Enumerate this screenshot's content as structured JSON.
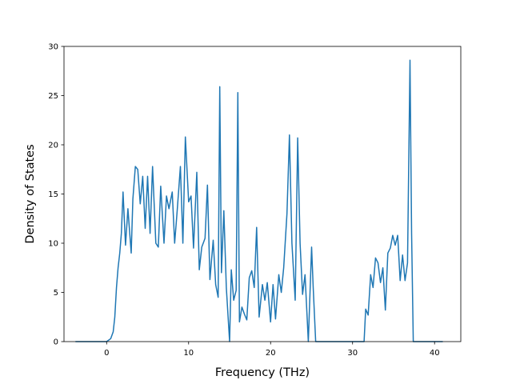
{
  "chart_data": {
    "type": "line",
    "title": "",
    "xlabel": "Frequency (THz)",
    "ylabel": "Density of States",
    "xlim": [
      -5.2,
      43.2
    ],
    "ylim": [
      0,
      30
    ],
    "xticks": [
      0,
      10,
      20,
      30,
      40
    ],
    "yticks": [
      0,
      5,
      10,
      15,
      20,
      25,
      30
    ],
    "grid": false,
    "legend": "none",
    "series": [
      {
        "color": "#1f77b4",
        "x": [
          -3.8,
          -2,
          0,
          0.5,
          0.8,
          1.0,
          1.2,
          1.4,
          1.6,
          1.8,
          2.0,
          2.3,
          2.6,
          3.0,
          3.2,
          3.5,
          3.8,
          4.1,
          4.4,
          4.7,
          5.0,
          5.3,
          5.6,
          6.0,
          6.3,
          6.6,
          7.0,
          7.3,
          7.6,
          8.0,
          8.3,
          8.6,
          9.0,
          9.3,
          9.6,
          10.0,
          10.3,
          10.6,
          11.0,
          11.3,
          11.6,
          12.0,
          12.3,
          12.6,
          13.0,
          13.3,
          13.6,
          13.8,
          14.0,
          14.3,
          14.6,
          15.0,
          15.2,
          15.5,
          15.8,
          16.0,
          16.2,
          16.5,
          16.8,
          17.1,
          17.4,
          17.7,
          18.0,
          18.3,
          18.6,
          19.0,
          19.3,
          19.6,
          20.0,
          20.3,
          20.6,
          21.0,
          21.3,
          21.6,
          22.0,
          22.3,
          22.6,
          23.0,
          23.3,
          23.6,
          23.9,
          24.2,
          24.6,
          25.0,
          25.2,
          25.5,
          25.7,
          26.0,
          28.0,
          30.0,
          31.4,
          31.6,
          31.9,
          32.2,
          32.5,
          32.8,
          33.1,
          33.4,
          33.7,
          34.0,
          34.3,
          34.6,
          34.9,
          35.2,
          35.5,
          35.8,
          36.1,
          36.4,
          36.7,
          37.0,
          37.2,
          37.4,
          38.0,
          41.0
        ],
        "y": [
          0,
          0,
          0,
          0.3,
          1.0,
          2.5,
          5.5,
          7.5,
          9.0,
          11.0,
          15.2,
          9.8,
          13.5,
          9.0,
          14.5,
          17.8,
          17.5,
          14.0,
          16.8,
          11.5,
          16.8,
          11.0,
          17.8,
          10.0,
          9.6,
          15.8,
          10.0,
          14.8,
          13.5,
          15.2,
          10.0,
          13.2,
          17.8,
          10.0,
          20.8,
          14.2,
          14.8,
          9.5,
          17.2,
          7.3,
          9.6,
          10.5,
          15.9,
          6.3,
          10.3,
          5.8,
          4.5,
          25.9,
          7.0,
          13.3,
          5.5,
          0,
          7.3,
          4.2,
          5.2,
          25.3,
          2.0,
          3.5,
          2.8,
          2.2,
          6.5,
          7.2,
          5.5,
          11.6,
          2.5,
          5.8,
          4.2,
          6.0,
          2.0,
          5.8,
          2.3,
          6.8,
          5.0,
          7.5,
          13.0,
          21.0,
          10.0,
          4.2,
          20.7,
          10.0,
          4.8,
          6.8,
          0,
          9.6,
          5.5,
          0,
          0,
          0,
          0,
          0,
          0,
          3.3,
          2.7,
          6.8,
          5.5,
          8.5,
          8.0,
          6.0,
          7.5,
          3.2,
          9.0,
          9.5,
          10.8,
          9.8,
          10.8,
          6.2,
          8.8,
          6.2,
          8.0,
          28.6,
          11.0,
          0,
          0,
          0
        ]
      }
    ]
  }
}
